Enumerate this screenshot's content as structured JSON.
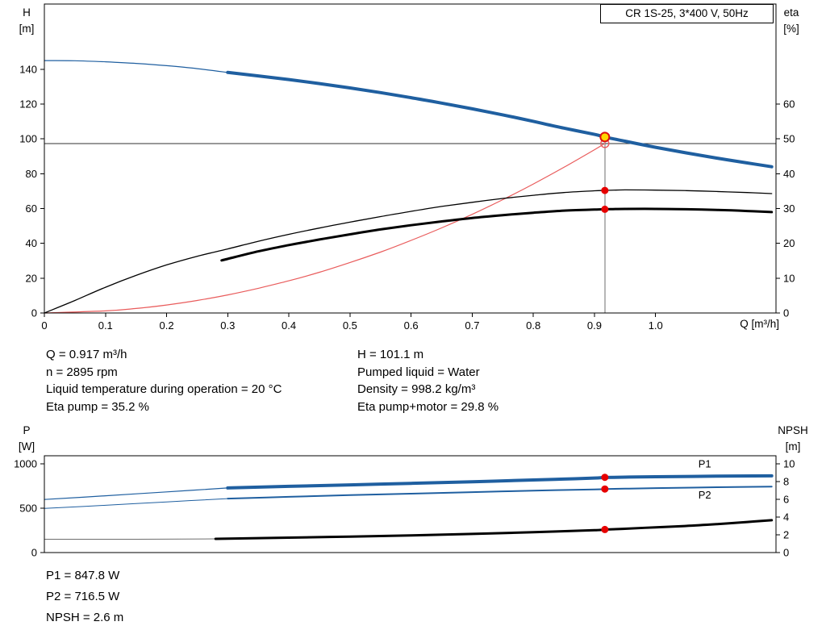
{
  "colors": {
    "curve_blue": "#1f5fa0",
    "curve_black": "#000000",
    "system_red": "#e95c5c",
    "marker_red": "#e60000",
    "duty_yellow": "#ffd700",
    "duty_ring_red": "#dd1111",
    "guide_dark": "#303030",
    "guide_gray": "#6e6e6e"
  },
  "info": {
    "q": "Q = 0.917 m³/h",
    "n": "n = 2895 rpm",
    "liquid_temperature": "Liquid temperature during operation = 20 °C",
    "eta_pump": "Eta pump = 35.2 %",
    "h": "H = 101.1 m",
    "pumped_liquid": "Pumped liquid = Water",
    "density": "Density = 998.2 kg/m³",
    "eta_pump_motor": "Eta pump+motor = 29.8 %",
    "p1": "P1 = 847.8 W",
    "p2": "P2 = 716.5 W",
    "npsh": "NPSH = 2.6 m"
  },
  "chart_data": [
    {
      "id": "qh-chart",
      "geom": "qh",
      "type": "line",
      "title": "CR 1S-25, 3*400 V, 50Hz",
      "x_axis": {
        "label": "Q [m³/h]",
        "min": 0,
        "max": 1.197,
        "tick_values": [
          0,
          0.1,
          0.2,
          0.3,
          0.4,
          0.5,
          0.6,
          0.7,
          0.8,
          0.9,
          1.0
        ],
        "tick_labels": [
          "0",
          "0.1",
          "0.2",
          "0.3",
          "0.4",
          "0.5",
          "0.6",
          "0.7",
          "0.8",
          "0.9",
          "1.0"
        ]
      },
      "y_left": {
        "label_lines": [
          "H",
          "[m]"
        ],
        "min": 0,
        "max": 177.5,
        "tick_values": [
          0,
          20,
          40,
          60,
          80,
          100,
          120,
          140
        ],
        "tick_labels": [
          "0",
          "20",
          "40",
          "60",
          "80",
          "100",
          "120",
          "140"
        ]
      },
      "y_right": {
        "label_lines": [
          "eta",
          "[%]"
        ],
        "min": 0,
        "max": 88.75,
        "tick_values": [
          0,
          10,
          20,
          30,
          40,
          50,
          60
        ],
        "tick_labels": [
          "0",
          "10",
          "20",
          "30",
          "40",
          "50",
          "60"
        ]
      },
      "guides": [
        {
          "name": "setpoint-line",
          "orient": "h",
          "axis": "left",
          "value": 97.4,
          "color": "guide_dark",
          "width": 1
        },
        {
          "name": "duty-guide-line",
          "orient": "v",
          "axis": "left",
          "value": 0.917,
          "from": 0,
          "to": 101.1,
          "color": "guide_gray",
          "width": 1
        }
      ],
      "series": [
        {
          "name": "system-curve",
          "axis": "left",
          "color": "system_red",
          "width": 1.2,
          "points": [
            [
              0,
              0
            ],
            [
              0.1,
              1.2
            ],
            [
              0.15,
              2.6
            ],
            [
              0.2,
              4.6
            ],
            [
              0.25,
              7.2
            ],
            [
              0.3,
              10.4
            ],
            [
              0.35,
              14.2
            ],
            [
              0.4,
              18.5
            ],
            [
              0.45,
              23.4
            ],
            [
              0.5,
              29
            ],
            [
              0.55,
              35
            ],
            [
              0.6,
              41.7
            ],
            [
              0.65,
              48.9
            ],
            [
              0.7,
              56.7
            ],
            [
              0.75,
              65.1
            ],
            [
              0.8,
              74.1
            ],
            [
              0.85,
              83.7
            ],
            [
              0.9,
              93.8
            ],
            [
              0.917,
              97.4
            ]
          ]
        },
        {
          "name": "pump-curve-thin",
          "axis": "left",
          "color": "curve_blue",
          "width": 1.2,
          "points": [
            [
              0,
              145
            ],
            [
              0.05,
              144.9
            ],
            [
              0.1,
              144.3
            ],
            [
              0.15,
              143.4
            ],
            [
              0.2,
              142.1
            ],
            [
              0.25,
              140.4
            ],
            [
              0.3,
              138.2
            ]
          ]
        },
        {
          "name": "pump-curve",
          "axis": "left",
          "color": "curve_blue",
          "width": 4,
          "points": [
            [
              0.3,
              138.2
            ],
            [
              0.35,
              136.2
            ],
            [
              0.4,
              134.1
            ],
            [
              0.45,
              131.8
            ],
            [
              0.5,
              129.3
            ],
            [
              0.55,
              126.6
            ],
            [
              0.6,
              123.7
            ],
            [
              0.65,
              120.6
            ],
            [
              0.7,
              117.3
            ],
            [
              0.75,
              113.8
            ],
            [
              0.8,
              110.1
            ],
            [
              0.85,
              106.2
            ],
            [
              0.9,
              102.6
            ],
            [
              0.917,
              101.1
            ],
            [
              0.95,
              98.7
            ],
            [
              1.0,
              95.2
            ],
            [
              1.05,
              92
            ],
            [
              1.1,
              89
            ],
            [
              1.15,
              86.2
            ],
            [
              1.19,
              84
            ]
          ]
        },
        {
          "name": "eta-pump-curve",
          "axis": "right",
          "color": "curve_black",
          "width": 1.3,
          "points": [
            [
              0,
              0
            ],
            [
              0.05,
              3.6
            ],
            [
              0.1,
              7.4
            ],
            [
              0.15,
              10.8
            ],
            [
              0.2,
              13.8
            ],
            [
              0.25,
              16.3
            ],
            [
              0.3,
              18.4
            ],
            [
              0.35,
              20.6
            ],
            [
              0.4,
              22.6
            ],
            [
              0.45,
              24.4
            ],
            [
              0.5,
              26.1
            ],
            [
              0.55,
              27.7
            ],
            [
              0.6,
              29.2
            ],
            [
              0.65,
              30.6
            ],
            [
              0.7,
              31.8
            ],
            [
              0.75,
              32.9
            ],
            [
              0.8,
              33.8
            ],
            [
              0.85,
              34.6
            ],
            [
              0.9,
              35.1
            ],
            [
              0.917,
              35.2
            ],
            [
              0.95,
              35.35
            ],
            [
              1.0,
              35.3
            ],
            [
              1.05,
              35.15
            ],
            [
              1.1,
              34.9
            ],
            [
              1.15,
              34.6
            ],
            [
              1.19,
              34.3
            ]
          ]
        },
        {
          "name": "eta-pump-motor-curve",
          "axis": "right",
          "color": "curve_black",
          "width": 3,
          "points": [
            [
              0.29,
              15.1
            ],
            [
              0.35,
              17.7
            ],
            [
              0.4,
              19.5
            ],
            [
              0.45,
              21.1
            ],
            [
              0.5,
              22.6
            ],
            [
              0.55,
              24
            ],
            [
              0.6,
              25.2
            ],
            [
              0.65,
              26.3
            ],
            [
              0.7,
              27.3
            ],
            [
              0.75,
              28.1
            ],
            [
              0.8,
              28.8
            ],
            [
              0.85,
              29.4
            ],
            [
              0.9,
              29.7
            ],
            [
              0.917,
              29.8
            ],
            [
              0.95,
              29.9
            ],
            [
              1.0,
              29.9
            ],
            [
              1.05,
              29.8
            ],
            [
              1.1,
              29.6
            ],
            [
              1.15,
              29.3
            ],
            [
              1.19,
              29
            ]
          ]
        }
      ],
      "markers": [
        {
          "name": "system-intersection-point",
          "x": 0.917,
          "y": 97.4,
          "axis": "left",
          "r": 5,
          "fill": "none",
          "stroke": "system_red",
          "stroke_width": 1.4
        },
        {
          "name": "duty-point",
          "x": 0.917,
          "y": 101.1,
          "axis": "left",
          "r": 5.5,
          "fill": "duty_yellow",
          "stroke": "duty_ring_red",
          "stroke_width": 2
        },
        {
          "name": "eta-pump-point",
          "x": 0.917,
          "y": 35.2,
          "axis": "right",
          "r": 4.5,
          "fill": "marker_red"
        },
        {
          "name": "eta-pump-motor-point",
          "x": 0.917,
          "y": 29.8,
          "axis": "right",
          "r": 4.5,
          "fill": "marker_red"
        }
      ]
    },
    {
      "id": "power-npsh-chart",
      "geom": "power",
      "type": "line",
      "title": "",
      "x_axis": {
        "label": "",
        "min": 0,
        "max": 1.197,
        "tick_values": [],
        "tick_labels": []
      },
      "y_left": {
        "label_lines": [
          "P",
          "[W]"
        ],
        "min": 0,
        "max": 1091,
        "tick_values": [
          0,
          500,
          1000
        ],
        "tick_labels": [
          "0",
          "500",
          "1000"
        ]
      },
      "y_right": {
        "label_lines": [
          "NPSH",
          "[m]"
        ],
        "min": 0,
        "max": 10.91,
        "tick_values": [
          0,
          2,
          4,
          6,
          8,
          10
        ],
        "tick_labels": [
          "0",
          "2",
          "4",
          "6",
          "8",
          "10"
        ]
      },
      "guides": [],
      "series": [
        {
          "name": "p1-curve-thin",
          "axis": "left",
          "color": "curve_blue",
          "width": 1.2,
          "points": [
            [
              0,
              598
            ],
            [
              0.1,
              640
            ],
            [
              0.2,
              684
            ],
            [
              0.3,
              728
            ]
          ]
        },
        {
          "name": "p1-curve",
          "axis": "left",
          "color": "curve_blue",
          "width": 4,
          "points": [
            [
              0.3,
              728
            ],
            [
              0.4,
              746
            ],
            [
              0.5,
              763
            ],
            [
              0.6,
              780
            ],
            [
              0.7,
              798
            ],
            [
              0.8,
              818
            ],
            [
              0.85,
              828
            ],
            [
              0.9,
              840
            ],
            [
              0.917,
              846
            ],
            [
              0.95,
              850
            ],
            [
              1.0,
              855
            ],
            [
              1.1,
              861
            ],
            [
              1.19,
              865
            ]
          ]
        },
        {
          "name": "p2-curve-thin",
          "axis": "left",
          "color": "curve_blue",
          "width": 1,
          "points": [
            [
              0,
              497
            ],
            [
              0.1,
              533
            ],
            [
              0.2,
              571
            ],
            [
              0.3,
              608
            ]
          ]
        },
        {
          "name": "p2-curve",
          "axis": "left",
          "color": "curve_blue",
          "width": 2,
          "points": [
            [
              0.3,
              608
            ],
            [
              0.4,
              628
            ],
            [
              0.5,
              647
            ],
            [
              0.6,
              664
            ],
            [
              0.7,
              681
            ],
            [
              0.8,
              698
            ],
            [
              0.9,
              712
            ],
            [
              0.917,
              716
            ],
            [
              0.95,
              720
            ],
            [
              1.0,
              726
            ],
            [
              1.1,
              736
            ],
            [
              1.19,
              744
            ]
          ]
        },
        {
          "name": "npsh-curve-thin",
          "axis": "right",
          "color": "guide_gray",
          "width": 1,
          "points": [
            [
              0,
              1.5
            ],
            [
              0.15,
              1.5
            ],
            [
              0.28,
              1.55
            ]
          ]
        },
        {
          "name": "npsh-curve",
          "axis": "right",
          "color": "curve_black",
          "width": 3,
          "points": [
            [
              0.28,
              1.55
            ],
            [
              0.4,
              1.68
            ],
            [
              0.5,
              1.8
            ],
            [
              0.6,
              1.94
            ],
            [
              0.7,
              2.1
            ],
            [
              0.8,
              2.3
            ],
            [
              0.9,
              2.52
            ],
            [
              0.917,
              2.6
            ],
            [
              0.95,
              2.68
            ],
            [
              1.0,
              2.85
            ],
            [
              1.05,
              3
            ],
            [
              1.1,
              3.2
            ],
            [
              1.15,
              3.45
            ],
            [
              1.19,
              3.65
            ]
          ]
        }
      ],
      "markers": [
        {
          "name": "p1-point",
          "x": 0.917,
          "y": 847.8,
          "axis": "left",
          "r": 4.5,
          "fill": "marker_red"
        },
        {
          "name": "p2-point",
          "x": 0.917,
          "y": 716.5,
          "axis": "left",
          "r": 4.5,
          "fill": "marker_red"
        },
        {
          "name": "npsh-point",
          "x": 0.917,
          "y": 2.6,
          "axis": "right",
          "r": 4.5,
          "fill": "marker_red"
        }
      ],
      "labels": [
        {
          "name": "p1-curve-label",
          "text": "P1",
          "x": 1.07,
          "y": 960,
          "axis": "left",
          "color": "curve_blue"
        },
        {
          "name": "p2-curve-label",
          "text": "P2",
          "x": 1.07,
          "y": 608,
          "axis": "left",
          "color": "curve_blue"
        }
      ]
    }
  ]
}
